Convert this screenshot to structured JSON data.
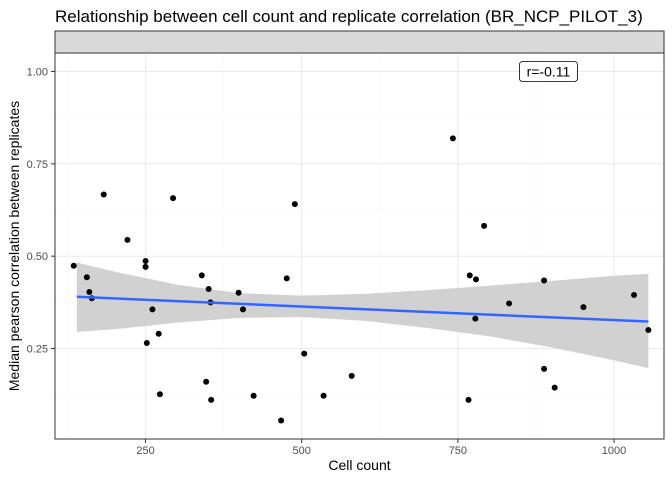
{
  "chart_data": {
    "type": "scatter",
    "title": "Relationship between cell count and replicate correlation (BR_NCP_PILOT_3)",
    "strip_label": "",
    "xlabel": "Cell count",
    "ylabel": "Median pearson correlation between replicates",
    "xlim": [
      105,
      1080
    ],
    "ylim": [
      0.005,
      1.05
    ],
    "x_ticks": [
      250,
      500,
      750,
      1000
    ],
    "x_tick_labels": [
      "250",
      "500",
      "750",
      "1000"
    ],
    "y_ticks": [
      0.25,
      0.5,
      0.75,
      1.0
    ],
    "y_tick_labels": [
      "0.25",
      "0.50",
      "0.75",
      "1.00"
    ],
    "grid": true,
    "points": [
      {
        "x": 135,
        "y": 0.474
      },
      {
        "x": 156,
        "y": 0.443
      },
      {
        "x": 160,
        "y": 0.403
      },
      {
        "x": 164,
        "y": 0.386
      },
      {
        "x": 183,
        "y": 0.667
      },
      {
        "x": 221,
        "y": 0.544
      },
      {
        "x": 250,
        "y": 0.487
      },
      {
        "x": 250,
        "y": 0.471
      },
      {
        "x": 252,
        "y": 0.265
      },
      {
        "x": 261,
        "y": 0.356
      },
      {
        "x": 271,
        "y": 0.29
      },
      {
        "x": 273,
        "y": 0.126
      },
      {
        "x": 294,
        "y": 0.657
      },
      {
        "x": 340,
        "y": 0.448
      },
      {
        "x": 347,
        "y": 0.16
      },
      {
        "x": 351,
        "y": 0.411
      },
      {
        "x": 354,
        "y": 0.375
      },
      {
        "x": 355,
        "y": 0.111
      },
      {
        "x": 399,
        "y": 0.401
      },
      {
        "x": 406,
        "y": 0.356
      },
      {
        "x": 423,
        "y": 0.122
      },
      {
        "x": 467,
        "y": 0.055
      },
      {
        "x": 476,
        "y": 0.44
      },
      {
        "x": 489,
        "y": 0.641
      },
      {
        "x": 504,
        "y": 0.236
      },
      {
        "x": 535,
        "y": 0.122
      },
      {
        "x": 580,
        "y": 0.176
      },
      {
        "x": 742,
        "y": 0.819
      },
      {
        "x": 767,
        "y": 0.111
      },
      {
        "x": 769,
        "y": 0.448
      },
      {
        "x": 778,
        "y": 0.331
      },
      {
        "x": 779,
        "y": 0.437
      },
      {
        "x": 792,
        "y": 0.582
      },
      {
        "x": 832,
        "y": 0.372
      },
      {
        "x": 888,
        "y": 0.195
      },
      {
        "x": 888,
        "y": 0.434
      },
      {
        "x": 905,
        "y": 0.144
      },
      {
        "x": 951,
        "y": 0.362
      },
      {
        "x": 1032,
        "y": 0.395
      },
      {
        "x": 1055,
        "y": 0.3
      }
    ],
    "trend_line": {
      "x": [
        140,
        1055
      ],
      "y": [
        0.39,
        0.323
      ]
    },
    "confidence_band": {
      "x": [
        140,
        200,
        300,
        400,
        500,
        600,
        700,
        800,
        900,
        1000,
        1055
      ],
      "upper": [
        0.483,
        0.458,
        0.423,
        0.4,
        0.393,
        0.398,
        0.408,
        0.42,
        0.433,
        0.447,
        0.452
      ],
      "lower": [
        0.295,
        0.302,
        0.32,
        0.333,
        0.335,
        0.325,
        0.306,
        0.283,
        0.253,
        0.218,
        0.197
      ]
    },
    "annotation": {
      "text": "r=-0.11",
      "x": 895,
      "y": 1.0
    },
    "colors": {
      "point": "#000000",
      "trend_line": "#3366ff",
      "confidence_band": "#cccccc",
      "strip_background": "#d9d9d9",
      "grid_major": "#ebebeb",
      "grid_minor": "#f5f5f5",
      "panel_border": "#333333"
    }
  }
}
